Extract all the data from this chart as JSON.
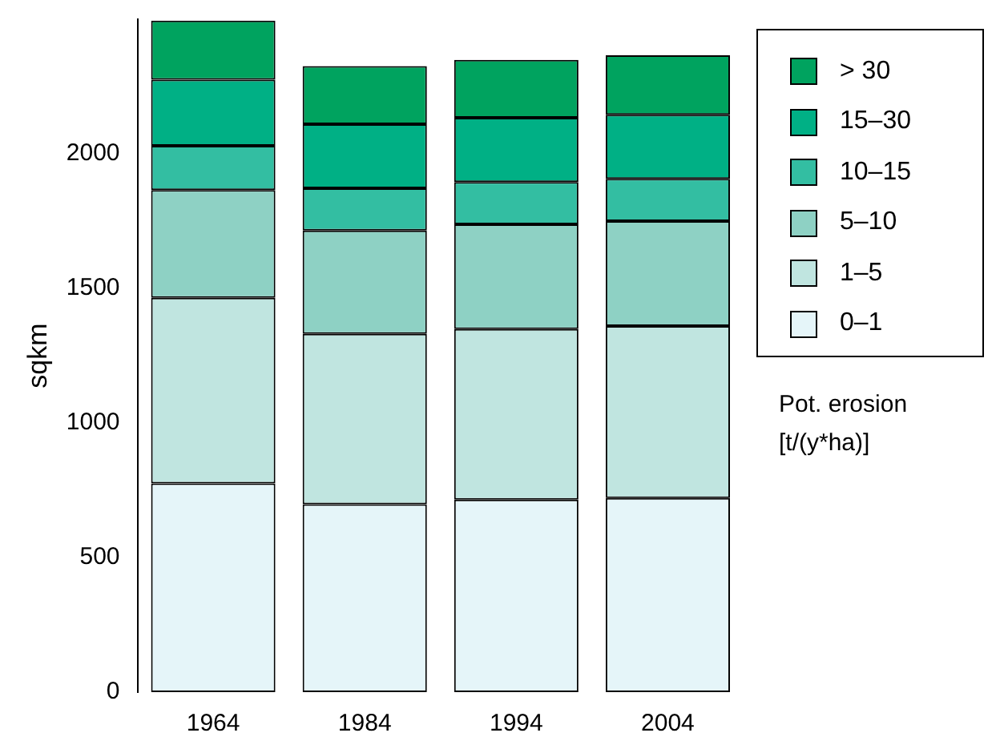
{
  "chart_data": {
    "type": "bar",
    "stacked": true,
    "ylabel": "sqkm",
    "legend_title": "Pot. erosion [t/(y*ha)]",
    "legend": "top right",
    "grid": false,
    "categories": [
      "1964",
      "1984",
      "1994",
      "2004"
    ],
    "ylim": [
      0,
      2500
    ],
    "yticks": [
      0,
      500,
      1000,
      1500,
      2000
    ],
    "series": [
      {
        "name": "0–1",
        "color": "#e5f5f9",
        "values": [
          775,
          698,
          715,
          721
        ]
      },
      {
        "name": "1–5",
        "color": "#c0e5e0",
        "values": [
          690,
          633,
          634,
          639
        ]
      },
      {
        "name": "5–10",
        "color": "#8ed1c4",
        "values": [
          400,
          384,
          389,
          390
        ]
      },
      {
        "name": "10–15",
        "color": "#33bea2",
        "values": [
          165,
          157,
          157,
          157
        ]
      },
      {
        "name": "15–30",
        "color": "#00b085",
        "values": [
          245,
          238,
          239,
          238
        ]
      },
      {
        "name": "> 30",
        "color": "#00a35f",
        "values": [
          220,
          216,
          215,
          221
        ]
      }
    ]
  }
}
